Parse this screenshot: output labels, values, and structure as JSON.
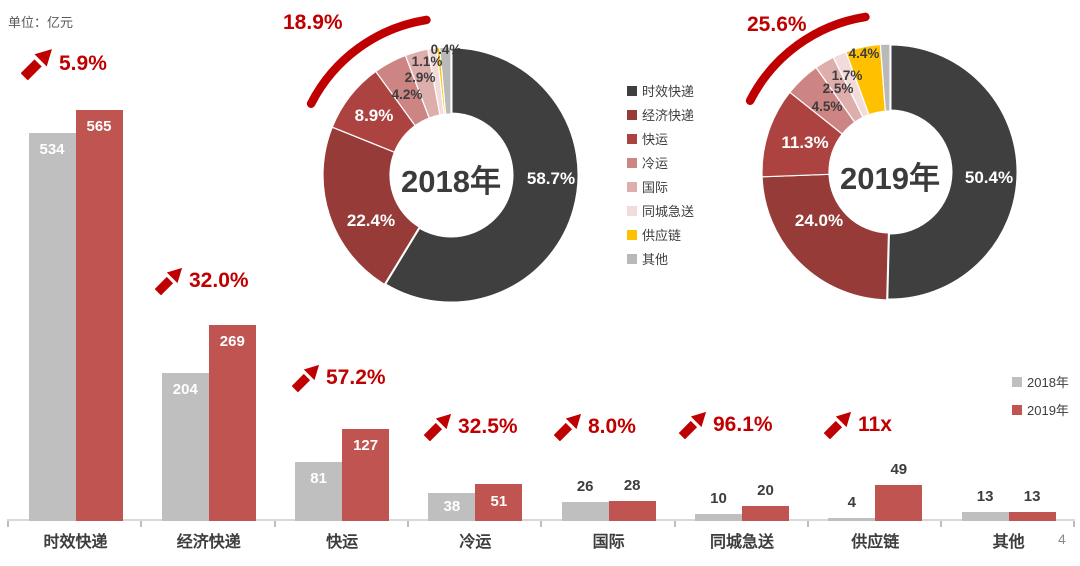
{
  "unit_label": "单位：亿元",
  "page_number": "4",
  "accent_color": "#c00000",
  "chart_data": [
    {
      "type": "bar",
      "categories": [
        "时效快递",
        "经济快递",
        "快运",
        "冷运",
        "国际",
        "同城急送",
        "供应链",
        "其他"
      ],
      "series": [
        {
          "name": "2018年",
          "color": "#bfbfbf",
          "values": [
            534,
            204,
            81,
            38,
            26,
            10,
            4,
            13
          ]
        },
        {
          "name": "2019年",
          "color": "#c05450",
          "values": [
            565,
            269,
            127,
            51,
            28,
            20,
            49,
            13
          ]
        }
      ],
      "growth_labels": [
        "5.9%",
        "32.0%",
        "57.2%",
        "32.5%",
        "8.0%",
        "96.1%",
        "11x",
        null
      ],
      "value_label_position": [
        "inside",
        "inside",
        "inside",
        "inside",
        "above",
        "above",
        "above",
        "above"
      ],
      "ylabel": "亿元",
      "grid": false,
      "legend_position": "right"
    },
    {
      "type": "pie",
      "center_label": "2018年",
      "growth_label": "18.9%",
      "slices": [
        {
          "name": "时效快递",
          "value": 58.7,
          "label": "58.7%",
          "color": "#3f3f3f"
        },
        {
          "name": "经济快递",
          "value": 22.4,
          "label": "22.4%",
          "color": "#963b38"
        },
        {
          "name": "快运",
          "value": 8.9,
          "label": "8.9%",
          "color": "#ad4340"
        },
        {
          "name": "冷运",
          "value": 4.2,
          "label": "4.2%",
          "color": "#cc8583"
        },
        {
          "name": "国际",
          "value": 2.9,
          "label": "2.9%",
          "color": "#ddaeac"
        },
        {
          "name": "同城急送",
          "value": 1.1,
          "label": "1.1%",
          "color": "#f1dcdb"
        },
        {
          "name": "供应链",
          "value": 0.4,
          "label": "0.4%",
          "color": "#ffc000"
        },
        {
          "name": "其他",
          "value": 1.4,
          "label": "",
          "color": "#b9b9b9"
        }
      ]
    },
    {
      "type": "pie",
      "center_label": "2019年",
      "growth_label": "25.6%",
      "slices": [
        {
          "name": "时效快递",
          "value": 50.4,
          "label": "50.4%",
          "color": "#3f3f3f"
        },
        {
          "name": "经济快递",
          "value": 24.0,
          "label": "24.0%",
          "color": "#963b38"
        },
        {
          "name": "快运",
          "value": 11.3,
          "label": "11.3%",
          "color": "#ad4340"
        },
        {
          "name": "冷运",
          "value": 4.5,
          "label": "4.5%",
          "color": "#cc8583"
        },
        {
          "name": "国际",
          "value": 2.5,
          "label": "2.5%",
          "color": "#ddaeac"
        },
        {
          "name": "同城急送",
          "value": 1.7,
          "label": "1.7%",
          "color": "#f1dcdb"
        },
        {
          "name": "供应链",
          "value": 4.4,
          "label": "4.4%",
          "color": "#ffc000"
        },
        {
          "name": "其他",
          "value": 1.2,
          "label": "",
          "color": "#b9b9b9"
        }
      ]
    }
  ],
  "pie_legend": {
    "items": [
      {
        "label": "时效快递",
        "color": "#3f3f3f"
      },
      {
        "label": "经济快递",
        "color": "#963b38"
      },
      {
        "label": "快运",
        "color": "#ad4340"
      },
      {
        "label": "冷运",
        "color": "#cc8583"
      },
      {
        "label": "国际",
        "color": "#ddaeac"
      },
      {
        "label": "同城急送",
        "color": "#f1dcdb"
      },
      {
        "label": "供应链",
        "color": "#ffc000"
      },
      {
        "label": "其他",
        "color": "#b9b9b9"
      }
    ]
  },
  "bar_legend": {
    "items": [
      {
        "label": "2018年",
        "color": "#bfbfbf"
      },
      {
        "label": "2019年",
        "color": "#c05450"
      }
    ]
  }
}
